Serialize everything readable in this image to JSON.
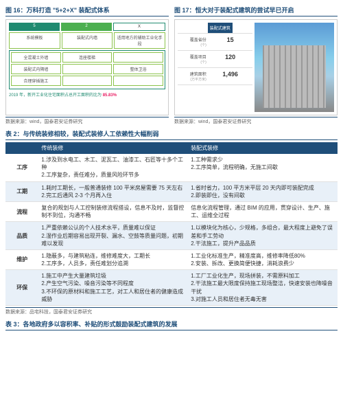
{
  "colors": {
    "primary": "#1f4e79",
    "green": "#1f8a70",
    "altRow": "#e8f0f8",
    "accent": "#e91e63"
  },
  "fig16": {
    "title": "图 16：万科打造 \"5+2+X\" 装配式体系",
    "row1": [
      "5",
      "2",
      "X"
    ],
    "row2": [
      "系统模板",
      "装配式内墙",
      "适用地方的辅助工业化手段"
    ],
    "gridRows": [
      [
        "全混凝土外墙",
        "连座楼梯",
        ""
      ],
      [
        "装配式内隔墙",
        "",
        "整体卫浴"
      ],
      [
        "合理穿插施工",
        "",
        ""
      ]
    ],
    "footer_pre": "2019 年，新开工业化住宅面积占总开工面积的比为",
    "footer_num": "85.83%",
    "source": "数据来源：wind，国泰君安证券研究"
  },
  "fig17": {
    "title": "图 17：恒大对于装配式建筑的尝试早已开启",
    "header": "装配式建筑",
    "rows": [
      {
        "label": "覆盖省份",
        "unit": "(个)",
        "value": "15"
      },
      {
        "label": "覆盖项目",
        "unit": "(个)",
        "value": "120"
      },
      {
        "label": "建筑面积",
        "unit": "(万平方米)",
        "value": "1,496"
      }
    ],
    "source": "数据来源：wind，国泰君安证券研究"
  },
  "table2": {
    "title": "表 2：与传统装修相较，装配式装修人工依赖性大幅削弱",
    "headers": [
      "",
      "传统装修",
      "装配式装修"
    ],
    "rows": [
      {
        "cat": "工序",
        "left": "1.涉及到水电工、木工、泥瓦工、油漆工、石匠等十多个工种\n2.工序复杂，责任难分，质量风险环节多",
        "right": "1.工种需求少\n2.工序简单，流程明确，无施工间歇",
        "alt": false
      },
      {
        "cat": "工期",
        "left": "1.耗时工期长，一般普通装修 100 平米房屋需要 75 天左右\n2.完工后通风 2-3 个月再入住",
        "right": "1.省时省力，100 平方米平层 20 天内即可装配完成\n2.即装即住，没有间歇",
        "alt": true
      },
      {
        "cat": "流程",
        "left": "复合的规划与人工控制装修流程搭设，信息不及时，监督控制不到位，沟通不畅",
        "right": "信息化流程管理，通过 BIM 的应用，贯穿设计、生产、施工、运维全过程",
        "alt": false
      },
      {
        "cat": "品质",
        "left": "1.严重依赖公认的个人技术水平，质量难以保证\n2.湿作业后期容易出现开裂、漏水、空鼓等质量问题，初期难以发现",
        "right": "1.以模块化为核心，少规格，多组合，最大程度上避免了误差和手工劳动\n2.干法施工，提升产品品质",
        "alt": true
      },
      {
        "cat": "维护",
        "left": "1.隐蔽多，与建筑粘连，维修难度大，工期长\n2.工序多，人员多，责任难划分追溯",
        "right": "1.工业化标准生产，精准度高，维修率降低80%\n2.安装、拆改、更换简便快捷，消耗浪费少",
        "alt": false
      },
      {
        "cat": "环保",
        "left": "1.施工中产生大量建筑垃圾\n2.产生空气污染、噪音污染等不同程度\n3.不环保的原材料和施工工艺，对工人和居住者的健康造成威胁",
        "right": "1.工厂工业化生产，现场拼装，不需原料加工\n2.干法施工最大限度保持施工现场整洁，快速安装也降噪音干扰\n3.对施工人员和居住者无毒无害",
        "alt": true
      }
    ],
    "source": "数据来源：品宅科技，国泰君安证券研究"
  },
  "table3": {
    "title": "表 3：各地政府多以容积率、补贴的形式鼓励装配式建筑的发展"
  }
}
